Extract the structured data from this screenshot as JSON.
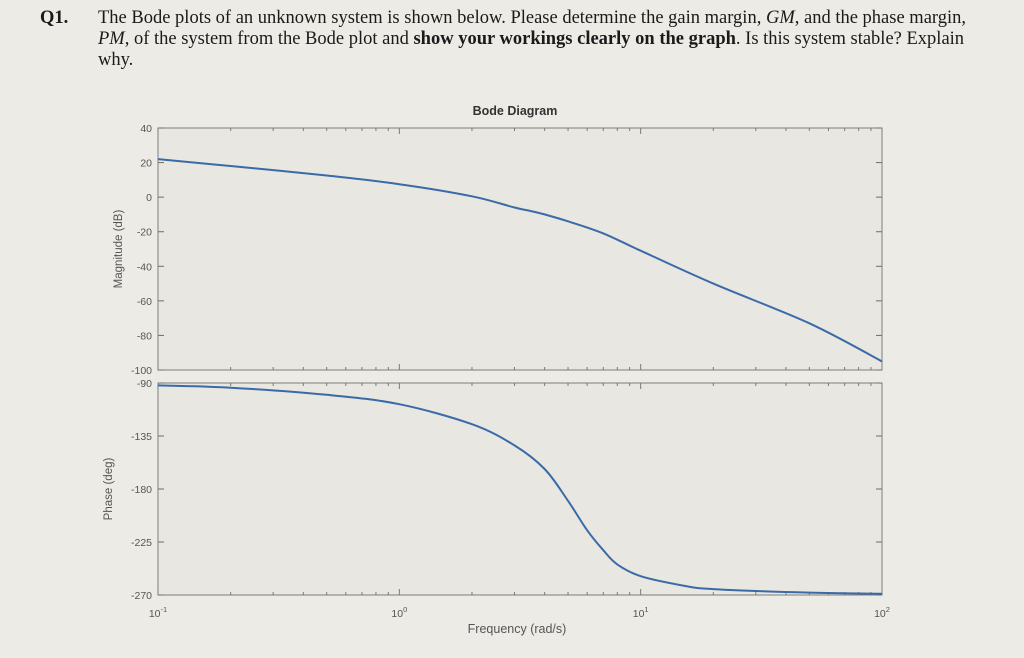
{
  "question": {
    "number": "Q1.",
    "line1_a": "The Bode plots of an unknown system is shown below. Please determine the gain margin, ",
    "gm_symbol": "GM",
    "line1_b": ", and",
    "line2_a": "the phase margin, ",
    "pm_symbol": "PM",
    "line2_b": ", of the system from the Bode plot and ",
    "emphasis_1": "show your workings clearly on the",
    "emphasis_2": "graph",
    "line3_b": ". Is this system stable? Explain why."
  },
  "chart_data": [
    {
      "type": "line",
      "title": "Bode Diagram",
      "ylabel": "Magnitude (dB)",
      "xlabel": "",
      "xscale": "log",
      "xlim": [
        0.1,
        100
      ],
      "ylim": [
        -100,
        40
      ],
      "yticks": [
        "40",
        "20",
        "0",
        "-20",
        "-40",
        "-60",
        "-80",
        "-100"
      ],
      "grid": false,
      "series": [
        {
          "x": [
            0.1,
            0.2,
            0.5,
            1,
            2,
            3,
            3.5,
            4,
            5,
            7,
            10,
            20,
            50,
            100
          ],
          "y": [
            22,
            18,
            12.5,
            7.5,
            0.5,
            -6,
            -8,
            -10,
            -14,
            -21,
            -31,
            -50,
            -73,
            -95
          ]
        }
      ]
    },
    {
      "type": "line",
      "title": "",
      "ylabel": "Phase (deg)",
      "xlabel": "Frequency (rad/s)",
      "xscale": "log",
      "xlim": [
        0.1,
        100
      ],
      "ylim": [
        -270,
        -90
      ],
      "yticks": [
        "-90",
        "-135",
        "-180",
        "-225",
        "-270"
      ],
      "xticks": [
        "10-1",
        "100",
        "101",
        "102"
      ],
      "grid": false,
      "series": [
        {
          "x": [
            0.1,
            0.2,
            0.5,
            1,
            2,
            3,
            4,
            5,
            6,
            7,
            8,
            10,
            15,
            20,
            50,
            100
          ],
          "y": [
            -92,
            -94,
            -100,
            -108,
            -125,
            -143,
            -163,
            -190,
            -215,
            -232,
            -244,
            -254,
            -262,
            -265,
            -268,
            -269
          ]
        }
      ]
    }
  ]
}
